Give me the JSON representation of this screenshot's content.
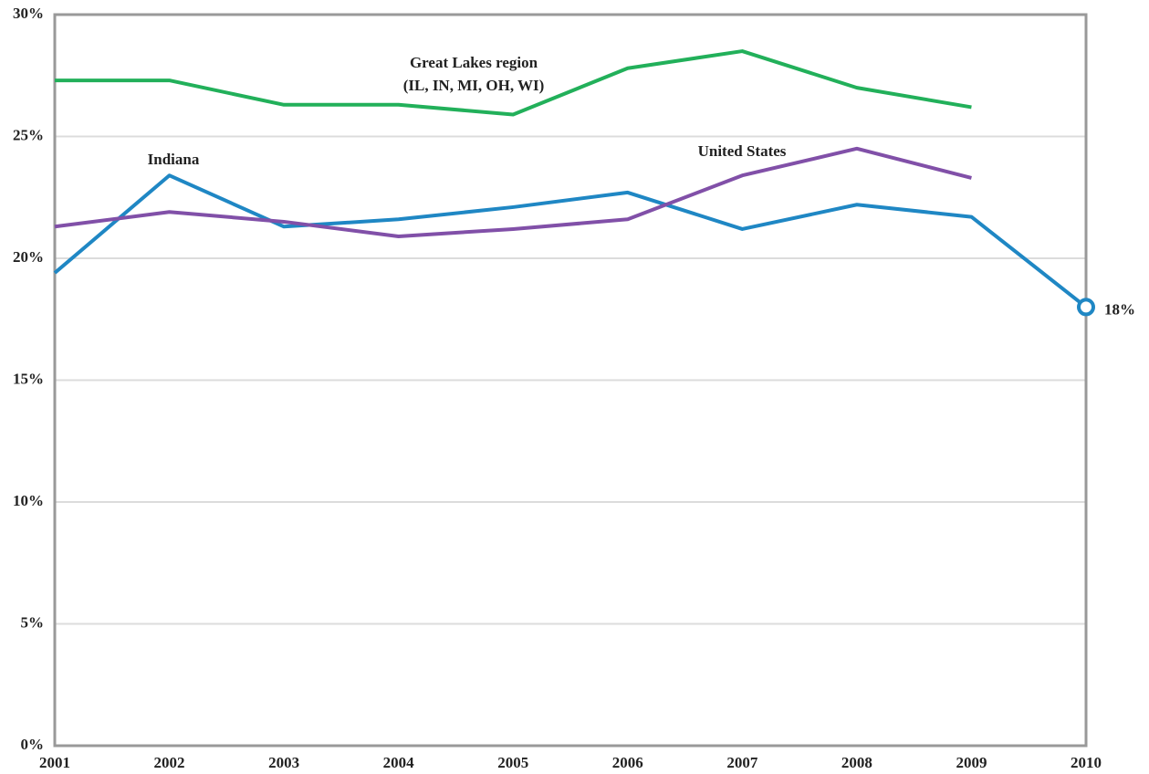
{
  "chart_data": {
    "type": "line",
    "x": [
      2001,
      2002,
      2003,
      2004,
      2005,
      2006,
      2007,
      2008,
      2009,
      2010
    ],
    "xlim": [
      2001,
      2010
    ],
    "xticks": [
      2001,
      2002,
      2003,
      2004,
      2005,
      2006,
      2007,
      2008,
      2009,
      2010
    ],
    "ylim": [
      0,
      30
    ],
    "yticks": [
      {
        "value": 0,
        "label": "0%"
      },
      {
        "value": 5,
        "label": "5%"
      },
      {
        "value": 10,
        "label": "10%"
      },
      {
        "value": 15,
        "label": "15%"
      },
      {
        "value": 20,
        "label": "20%"
      },
      {
        "value": 25,
        "label": "25%"
      },
      {
        "value": 30,
        "label": "30%"
      }
    ],
    "grid": true,
    "series": [
      {
        "name": "Indiana",
        "color": "#1f87c4",
        "values": [
          19.4,
          23.4,
          21.3,
          21.6,
          22.1,
          22.7,
          21.2,
          22.2,
          21.7,
          18
        ],
        "value_labels": [
          null,
          null,
          null,
          null,
          null,
          null,
          null,
          null,
          null,
          "18%"
        ]
      },
      {
        "name": "Great Lakes region",
        "color": "#22b05a",
        "values": [
          27.3,
          27.3,
          26.3,
          26.3,
          25.9,
          27.8,
          28.5,
          27.0,
          26.2,
          null
        ]
      },
      {
        "name": "United States",
        "color": "#8150a8",
        "values": [
          21.3,
          21.9,
          21.5,
          20.9,
          21.2,
          21.6,
          23.4,
          24.5,
          23.3,
          null
        ]
      }
    ],
    "annotations": [
      "(IL, IN, MI, OH, WI)"
    ]
  }
}
